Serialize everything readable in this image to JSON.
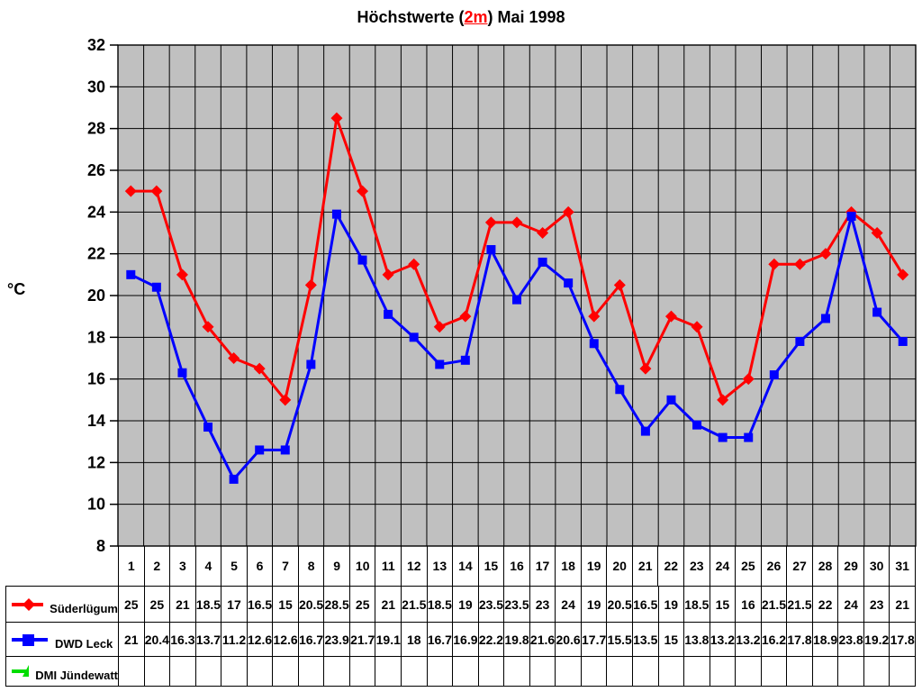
{
  "title": {
    "prefix": "Höchstwerte (",
    "highlight": "2m",
    "suffix": ") Mai 1998"
  },
  "y_axis_unit": "°C",
  "colors": {
    "plot_background": "#C0C0C0",
    "gridline": "#000000",
    "title_highlight": "#FF0000"
  },
  "chart_data": {
    "type": "line",
    "title": "Höchstwerte (2m) Mai 1998",
    "xlabel": "",
    "ylabel": "°C",
    "ylim": [
      8,
      32
    ],
    "ytick_step": 2,
    "grid": true,
    "plot_bg": "#C0C0C0",
    "legend_position": "table-left-bottom",
    "x": [
      1,
      2,
      3,
      4,
      5,
      6,
      7,
      8,
      9,
      10,
      11,
      12,
      13,
      14,
      15,
      16,
      17,
      18,
      19,
      20,
      21,
      22,
      23,
      24,
      25,
      26,
      27,
      28,
      29,
      30,
      31
    ],
    "series": [
      {
        "name": "Süderlügum",
        "color": "#FF0000",
        "marker": "diamond",
        "values": [
          25,
          25,
          21,
          18.5,
          17,
          16.5,
          15,
          20.5,
          28.5,
          25,
          21,
          21.5,
          18.5,
          19,
          23.5,
          23.5,
          23,
          24,
          19,
          20.5,
          16.5,
          19,
          18.5,
          15,
          16,
          21.5,
          21.5,
          22,
          24,
          23,
          21
        ]
      },
      {
        "name": "DWD Leck",
        "color": "#0000FF",
        "marker": "square",
        "values": [
          21,
          20.4,
          16.3,
          13.7,
          11.2,
          12.6,
          12.6,
          16.7,
          23.9,
          21.7,
          19.1,
          18,
          16.7,
          16.9,
          22.2,
          19.8,
          21.6,
          20.6,
          17.7,
          15.5,
          13.5,
          15,
          13.8,
          13.2,
          13.2,
          16.2,
          17.8,
          18.9,
          23.8,
          19.2,
          17.8
        ]
      },
      {
        "name": "DMI Jündewatt",
        "color": "#00DD00",
        "marker": "triangle",
        "values": []
      }
    ]
  }
}
